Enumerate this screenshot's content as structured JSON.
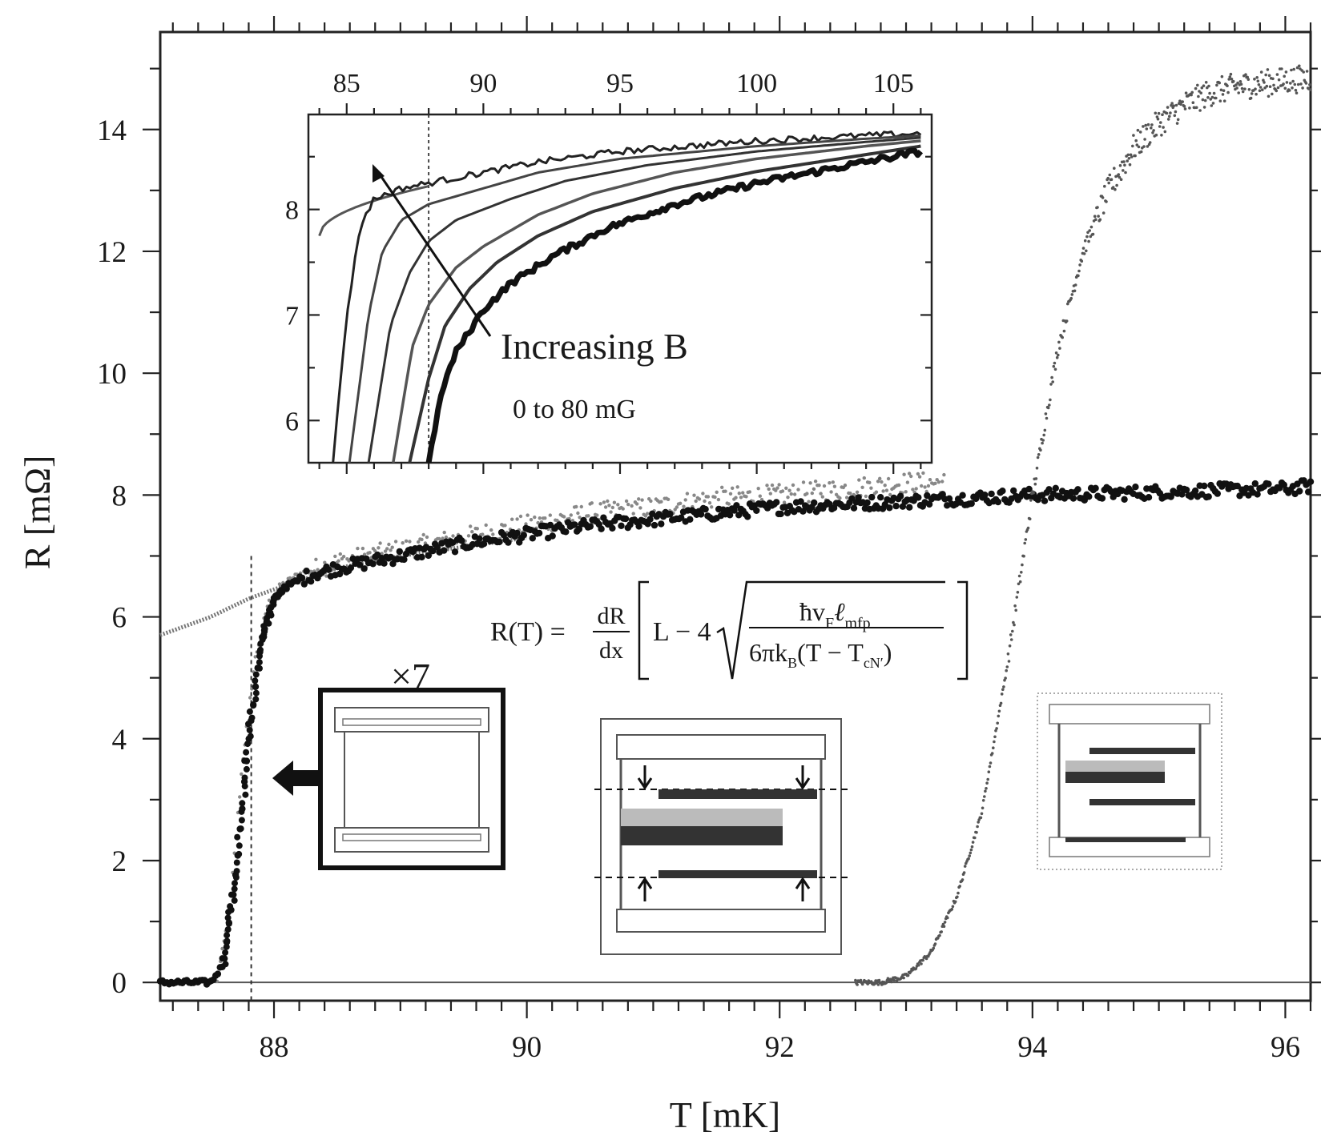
{
  "chart_data": [
    {
      "type": "scatter",
      "title": "",
      "xlabel": "T  [mK]",
      "ylabel": "R  [mΩ]",
      "xlim": [
        87.1,
        96.2
      ],
      "ylim": [
        -0.3,
        15.6
      ],
      "xticks": [
        "88",
        "90",
        "92",
        "94",
        "96"
      ],
      "yticks": [
        "0",
        "2",
        "4",
        "6",
        "8",
        "10",
        "12",
        "14"
      ],
      "grid": false,
      "legend": "none",
      "series": [
        {
          "style": "large-dots",
          "x": [
            87.1,
            87.5,
            87.6,
            87.7,
            87.8,
            87.9,
            88.0,
            88.1,
            88.3,
            88.5,
            89.0,
            89.5,
            90.0,
            90.5,
            91.0,
            91.5,
            92.0,
            92.5,
            93.0,
            93.5,
            94.0,
            94.5,
            95.0,
            95.5,
            96.0,
            96.2
          ],
          "y": [
            0.0,
            0.0,
            0.3,
            1.8,
            4.0,
            5.6,
            6.3,
            6.5,
            6.7,
            6.8,
            7.0,
            7.2,
            7.35,
            7.5,
            7.6,
            7.7,
            7.8,
            7.85,
            7.9,
            7.95,
            8.0,
            8.02,
            8.05,
            8.08,
            8.1,
            8.15
          ]
        },
        {
          "style": "fine-dots",
          "x": [
            87.55,
            87.65,
            87.75,
            87.85,
            87.95,
            88.05,
            88.2,
            88.5,
            89.0,
            89.5,
            90.0,
            90.5,
            91.0,
            91.5,
            92.0,
            92.5,
            93.0,
            93.3
          ],
          "y": [
            0.0,
            1.2,
            3.6,
            5.3,
            6.2,
            6.5,
            6.7,
            6.9,
            7.1,
            7.3,
            7.5,
            7.7,
            7.8,
            7.95,
            8.0,
            8.1,
            8.2,
            8.2
          ]
        },
        {
          "style": "fit-line",
          "x": [
            87.1,
            87.5,
            87.8,
            88.0,
            88.5,
            89.0,
            90.0
          ],
          "y": [
            5.7,
            6.0,
            6.3,
            6.45,
            6.8,
            7.0,
            7.3
          ]
        },
        {
          "style": "sparse-dots",
          "x": [
            92.6,
            92.8,
            93.0,
            93.2,
            93.4,
            93.6,
            93.8,
            94.0,
            94.2,
            94.4,
            94.6,
            94.8,
            95.0,
            95.2,
            95.4,
            95.6,
            95.8,
            96.0,
            96.2
          ],
          "y": [
            0.0,
            0.0,
            0.1,
            0.5,
            1.4,
            2.8,
            5.2,
            8.0,
            10.4,
            12.0,
            13.0,
            13.7,
            14.1,
            14.4,
            14.6,
            14.7,
            14.75,
            14.8,
            14.85
          ]
        }
      ],
      "annotations": {
        "multiplier": "×7",
        "formula": {
          "lhs": "R(T) =",
          "frac_num": "dR",
          "frac_den": "dx",
          "bracket_L": "L − 4",
          "sqrt_num": "ħv",
          "sqrt_num_sub1": "F",
          "sqrt_num_mid": "ℓ",
          "sqrt_num_sub2": "mfp",
          "sqrt_den": "6πk",
          "sqrt_den_sub1": "B",
          "sqrt_den_mid": "(T − T",
          "sqrt_den_sub2": "cN′",
          "sqrt_den_end": ")"
        }
      }
    },
    {
      "type": "line",
      "title": "",
      "xlabel": "",
      "ylabel": "",
      "xlim": [
        83.6,
        106.4
      ],
      "ylim": [
        5.6,
        8.9
      ],
      "xticks": [
        "85",
        "90",
        "95",
        "100",
        "105"
      ],
      "yticks": [
        "6",
        "7",
        "8"
      ],
      "grid": false,
      "legend": "none",
      "series": [
        {
          "x": [
            84.5,
            85.0,
            85.5,
            86.0,
            87.0,
            88.0,
            90.0,
            92.0,
            95.0,
            100.0,
            104.0,
            106.0
          ],
          "y": [
            5.6,
            7.0,
            7.85,
            8.1,
            8.2,
            8.25,
            8.35,
            8.45,
            8.55,
            8.65,
            8.7,
            8.72
          ]
        },
        {
          "x": [
            85.1,
            85.8,
            86.3,
            87.0,
            88.0,
            90.0,
            92.0,
            95.0,
            100.0,
            104.0,
            106.0
          ],
          "y": [
            5.6,
            7.0,
            7.6,
            7.9,
            8.05,
            8.2,
            8.35,
            8.48,
            8.6,
            8.67,
            8.7
          ]
        },
        {
          "x": [
            85.8,
            86.6,
            87.3,
            88.0,
            89.0,
            91.0,
            93.0,
            96.0,
            100.0,
            104.0,
            106.0
          ],
          "y": [
            5.6,
            6.9,
            7.4,
            7.7,
            7.9,
            8.1,
            8.27,
            8.42,
            8.55,
            8.64,
            8.68
          ]
        },
        {
          "x": [
            86.7,
            87.4,
            88.0,
            89.0,
            90.0,
            92.0,
            94.0,
            97.0,
            100.0,
            104.0,
            106.0
          ],
          "y": [
            5.6,
            6.7,
            7.1,
            7.45,
            7.65,
            7.95,
            8.15,
            8.35,
            8.48,
            8.6,
            8.65
          ]
        },
        {
          "x": [
            87.3,
            88.0,
            88.6,
            89.5,
            90.5,
            92.0,
            94.0,
            97.0,
            100.0,
            104.0,
            106.0
          ],
          "y": [
            5.6,
            6.4,
            6.9,
            7.25,
            7.5,
            7.75,
            7.98,
            8.2,
            8.36,
            8.52,
            8.6
          ]
        },
        {
          "x": [
            88.0,
            88.5,
            89.0,
            90.0,
            91.0,
            92.5,
            94.5,
            97.0,
            100.0,
            104.0,
            106.0
          ],
          "y": [
            5.6,
            6.3,
            6.65,
            7.05,
            7.3,
            7.55,
            7.82,
            8.05,
            8.25,
            8.45,
            8.55
          ]
        }
      ],
      "annotations": {
        "arrow_label": "Increasing B",
        "range_label": "0 to 80 mG"
      }
    }
  ]
}
